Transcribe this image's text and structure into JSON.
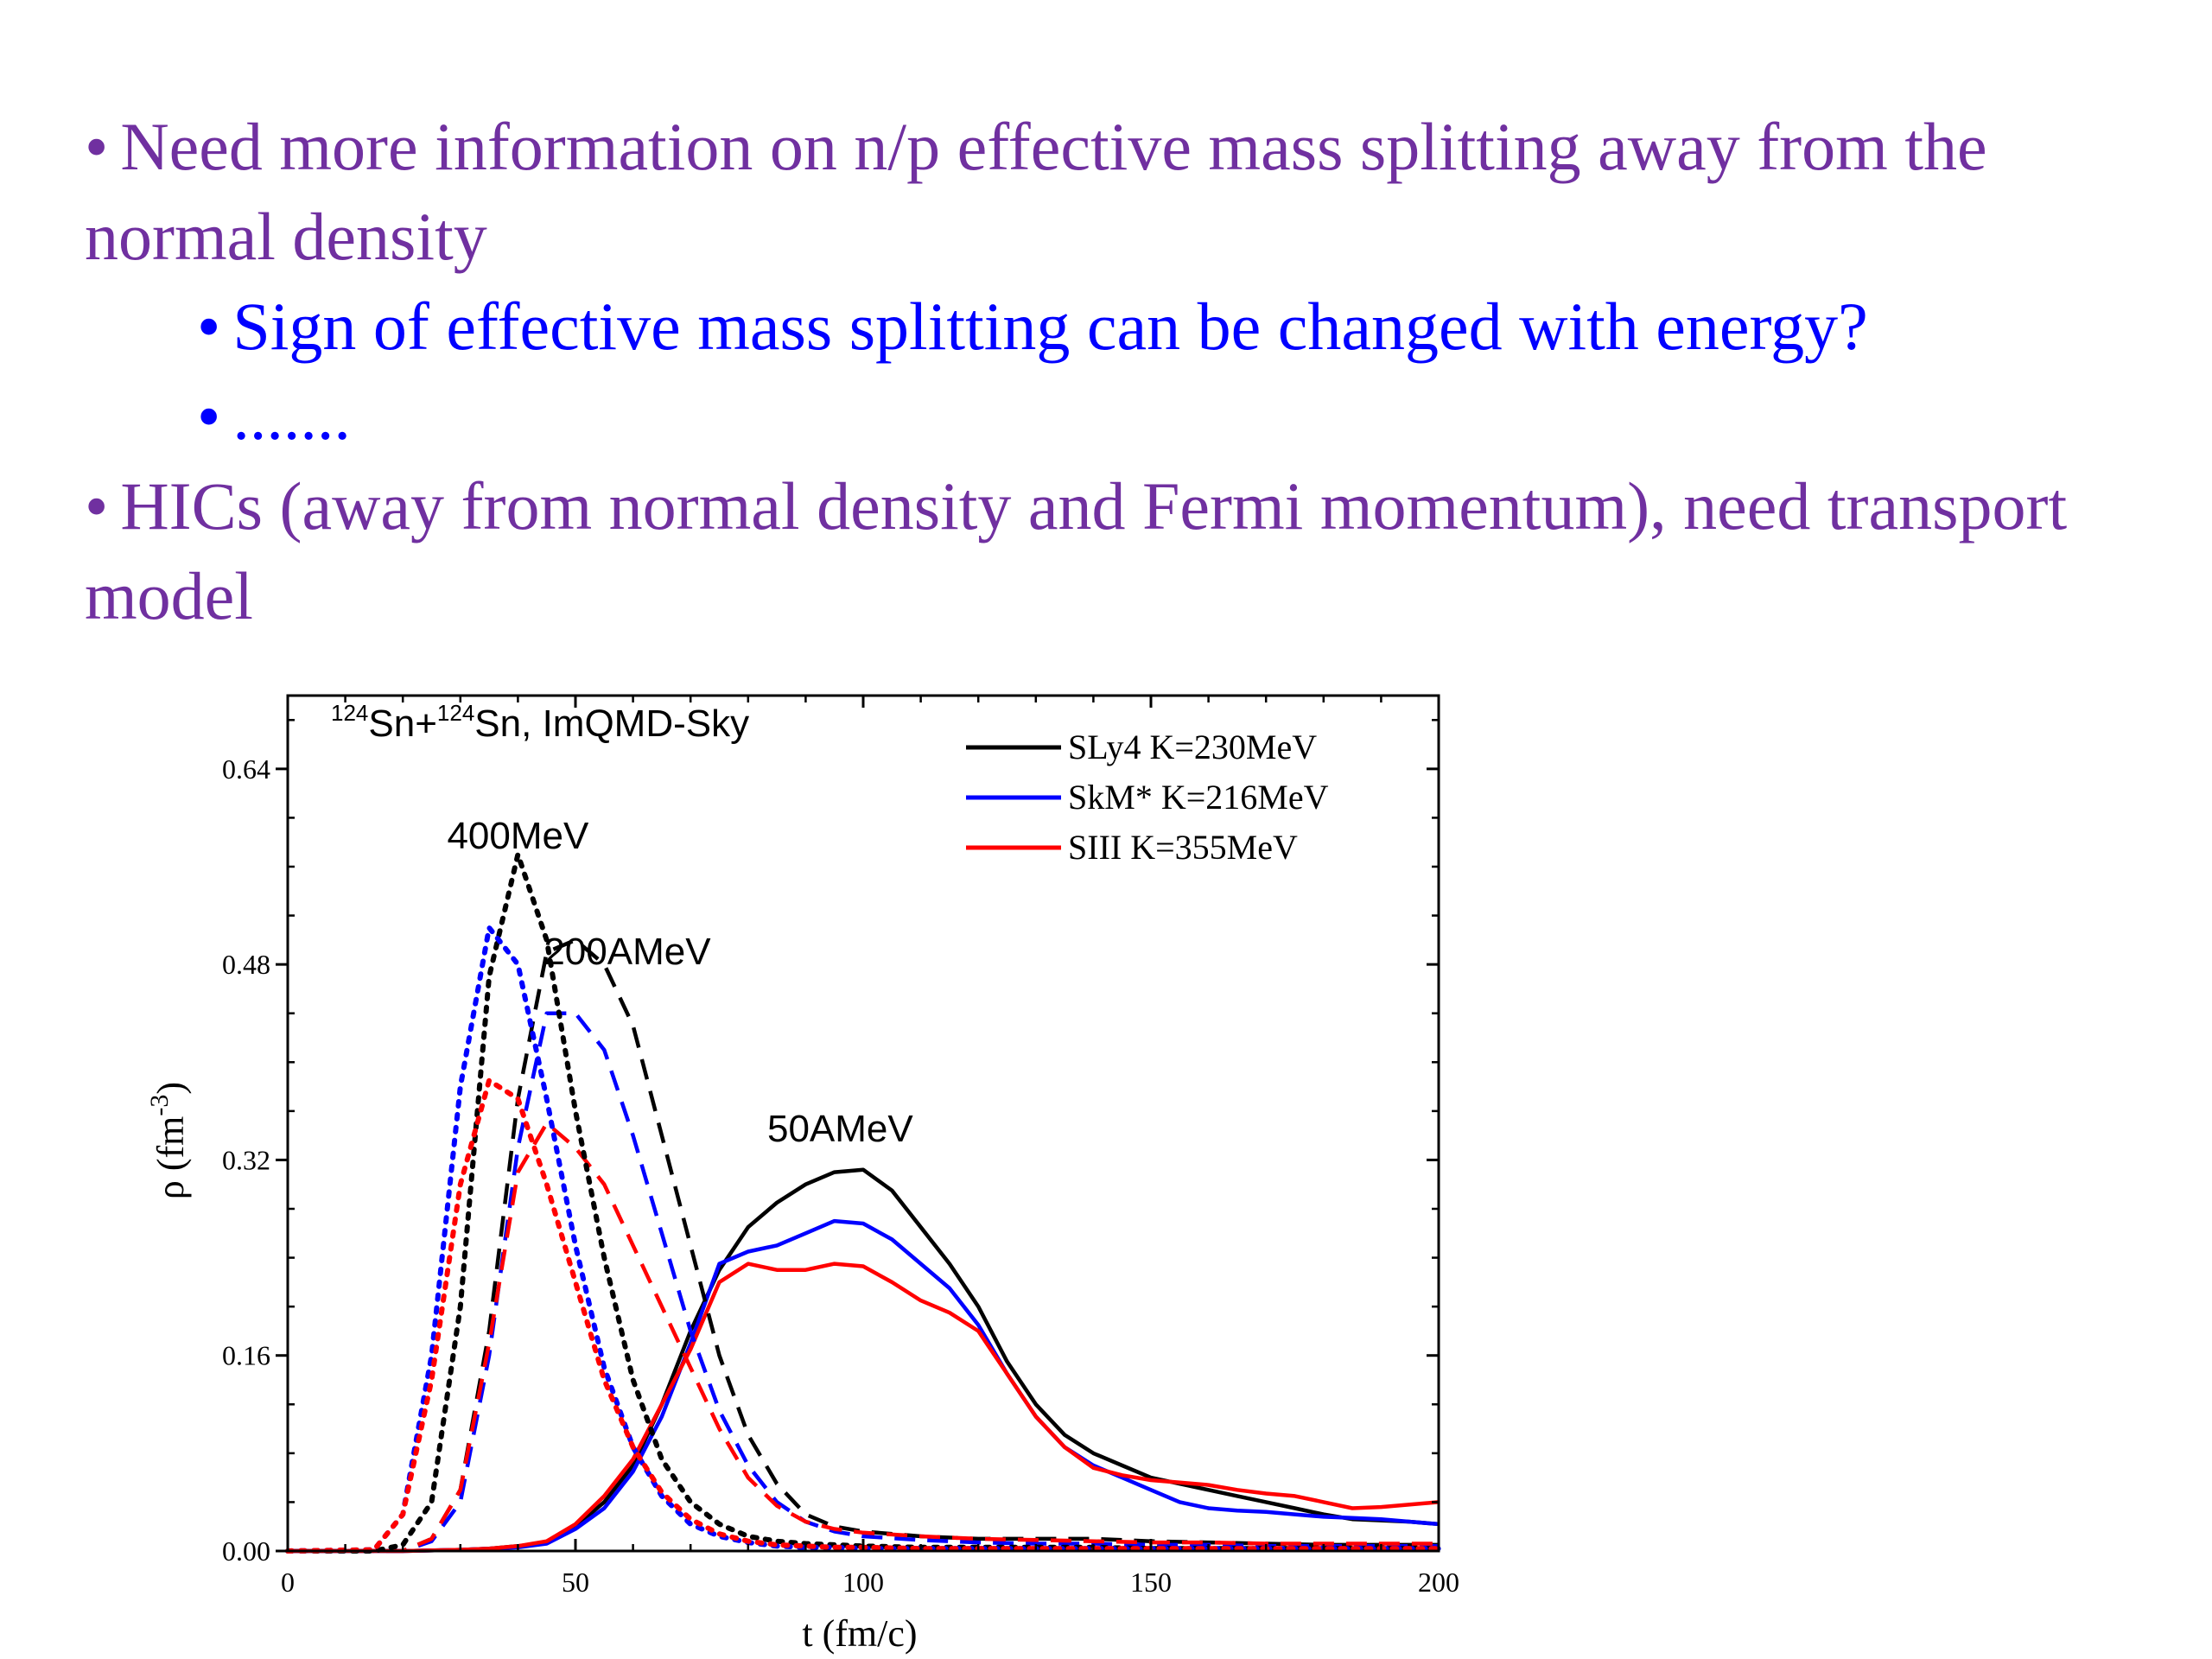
{
  "slide": {
    "bullets": [
      {
        "level": 1,
        "text": "Need more information on n/p effective mass splitting  away from the normal density"
      },
      {
        "level": 2,
        "text": "Sign of effective mass splitting can be changed with energy?"
      },
      {
        "level": 2,
        "text": "......."
      },
      {
        "level": 1,
        "text": "HICs (away from normal density and Fermi momentum), need transport model"
      }
    ],
    "bullet_char": "•"
  },
  "chart_data": {
    "type": "line",
    "title": "Sn+Sn, ImQMD-Sky",
    "title_parts": {
      "sup1": "124",
      "t1": "Sn+",
      "sup2": "124",
      "t2": "Sn, ImQMD-Sky"
    },
    "xlabel": "t (fm/c)",
    "ylabel_parts": {
      "main": "ρ (fm",
      "sup": "-3",
      "end": ")"
    },
    "xlim": [
      0,
      200
    ],
    "ylim": [
      0,
      0.7
    ],
    "xticks": [
      "0",
      "50",
      "100",
      "150",
      "200"
    ],
    "yticks": [
      "0.00",
      "0.16",
      "0.32",
      "0.48",
      "0.64"
    ],
    "ytick_values": [
      0,
      0.16,
      0.32,
      0.48,
      0.64
    ],
    "annotations": [
      {
        "text": "400MeV",
        "x": 40,
        "y": 0.575
      },
      {
        "text": "200AMeV",
        "x": 59,
        "y": 0.48
      },
      {
        "text": "50AMeV",
        "x": 96,
        "y": 0.335
      }
    ],
    "legend": {
      "placement": "top-right",
      "entries": [
        {
          "name": "SLy4 K=230MeV",
          "color": "#000000"
        },
        {
          "name": "SkM* K=216MeV",
          "color": "#0000ff"
        },
        {
          "name": "SIII K=355MeV",
          "color": "#ff0000"
        }
      ]
    },
    "series": [
      {
        "name": "SLy4 K=230MeV",
        "energy": "50AMeV",
        "color": "#000000",
        "style": "solid",
        "x": [
          0,
          20,
          30,
          35,
          40,
          45,
          50,
          55,
          60,
          65,
          70,
          75,
          80,
          85,
          90,
          95,
          100,
          105,
          110,
          115,
          120,
          125,
          130,
          135,
          140,
          145,
          150,
          155,
          160,
          165,
          170,
          175,
          180,
          185,
          190,
          195,
          200
        ],
        "y": [
          0,
          0,
          0.001,
          0.002,
          0.004,
          0.007,
          0.02,
          0.04,
          0.07,
          0.12,
          0.18,
          0.23,
          0.265,
          0.285,
          0.3,
          0.31,
          0.312,
          0.295,
          0.265,
          0.235,
          0.2,
          0.155,
          0.12,
          0.095,
          0.08,
          0.07,
          0.06,
          0.055,
          0.05,
          0.045,
          0.04,
          0.035,
          0.03,
          0.026,
          0.025,
          0.024,
          0.022
        ]
      },
      {
        "name": "SkM* K=216MeV",
        "energy": "50AMeV",
        "color": "#0000ff",
        "style": "solid",
        "x": [
          0,
          20,
          30,
          35,
          40,
          45,
          50,
          55,
          60,
          65,
          70,
          75,
          80,
          85,
          90,
          95,
          100,
          105,
          110,
          115,
          120,
          125,
          130,
          135,
          140,
          145,
          150,
          155,
          160,
          165,
          170,
          175,
          180,
          185,
          190,
          195,
          200
        ],
        "y": [
          0,
          0,
          0.001,
          0.002,
          0.003,
          0.006,
          0.018,
          0.035,
          0.065,
          0.11,
          0.17,
          0.235,
          0.245,
          0.25,
          0.26,
          0.27,
          0.268,
          0.255,
          0.235,
          0.215,
          0.185,
          0.145,
          0.11,
          0.085,
          0.07,
          0.06,
          0.05,
          0.04,
          0.035,
          0.033,
          0.032,
          0.03,
          0.028,
          0.027,
          0.026,
          0.024,
          0.022
        ]
      },
      {
        "name": "SIII K=355MeV",
        "energy": "50AMeV",
        "color": "#ff0000",
        "style": "solid",
        "x": [
          0,
          20,
          30,
          35,
          40,
          45,
          50,
          55,
          60,
          65,
          70,
          75,
          80,
          85,
          90,
          95,
          100,
          105,
          110,
          115,
          120,
          125,
          130,
          135,
          140,
          145,
          150,
          155,
          160,
          165,
          170,
          175,
          180,
          185,
          190,
          195,
          200
        ],
        "y": [
          0,
          0,
          0.001,
          0.002,
          0.004,
          0.008,
          0.022,
          0.045,
          0.075,
          0.12,
          0.165,
          0.22,
          0.235,
          0.23,
          0.23,
          0.235,
          0.233,
          0.22,
          0.205,
          0.195,
          0.18,
          0.145,
          0.11,
          0.085,
          0.068,
          0.062,
          0.058,
          0.056,
          0.054,
          0.05,
          0.047,
          0.045,
          0.04,
          0.035,
          0.036,
          0.038,
          0.04
        ]
      },
      {
        "name": "SLy4 K=230MeV",
        "energy": "200AMeV",
        "color": "#000000",
        "style": "dashed",
        "x": [
          0,
          20,
          25,
          30,
          35,
          40,
          45,
          50,
          55,
          60,
          65,
          70,
          75,
          80,
          85,
          90,
          95,
          100,
          110,
          120,
          130,
          140,
          150,
          160,
          170,
          180,
          190,
          200
        ],
        "y": [
          0,
          0,
          0.01,
          0.05,
          0.18,
          0.37,
          0.49,
          0.5,
          0.48,
          0.43,
          0.34,
          0.25,
          0.16,
          0.095,
          0.055,
          0.03,
          0.02,
          0.016,
          0.012,
          0.01,
          0.01,
          0.01,
          0.008,
          0.007,
          0.006,
          0.005,
          0.005,
          0.005
        ]
      },
      {
        "name": "SkM* K=216MeV",
        "energy": "200AMeV",
        "color": "#0000ff",
        "style": "dashed",
        "x": [
          0,
          20,
          25,
          30,
          35,
          40,
          45,
          50,
          55,
          60,
          65,
          70,
          75,
          80,
          85,
          90,
          95,
          100,
          110,
          120,
          130,
          140,
          150,
          160,
          170,
          180,
          190,
          200
        ],
        "y": [
          0,
          0,
          0.008,
          0.04,
          0.16,
          0.33,
          0.44,
          0.44,
          0.41,
          0.34,
          0.26,
          0.18,
          0.115,
          0.07,
          0.04,
          0.024,
          0.016,
          0.012,
          0.009,
          0.007,
          0.006,
          0.006,
          0.005,
          0.005,
          0.004,
          0.004,
          0.004,
          0.004
        ]
      },
      {
        "name": "SIII K=355MeV",
        "energy": "200AMeV",
        "color": "#ff0000",
        "style": "dashed",
        "x": [
          0,
          20,
          25,
          30,
          35,
          40,
          45,
          50,
          55,
          60,
          65,
          70,
          75,
          80,
          85,
          90,
          95,
          100,
          110,
          120,
          130,
          140,
          150,
          160,
          170,
          180,
          190,
          200
        ],
        "y": [
          0,
          0,
          0.01,
          0.05,
          0.17,
          0.31,
          0.35,
          0.33,
          0.3,
          0.25,
          0.2,
          0.15,
          0.1,
          0.06,
          0.037,
          0.024,
          0.018,
          0.015,
          0.012,
          0.01,
          0.009,
          0.008,
          0.007,
          0.007,
          0.006,
          0.006,
          0.006,
          0.006
        ]
      },
      {
        "name": "SLy4 K=230MeV",
        "energy": "400MeV",
        "color": "#000000",
        "style": "dotted",
        "x": [
          0,
          15,
          20,
          25,
          30,
          35,
          40,
          45,
          50,
          55,
          60,
          65,
          70,
          75,
          80,
          85,
          90,
          95,
          100,
          110,
          120,
          130,
          140,
          150,
          160,
          170,
          180,
          190,
          200
        ],
        "y": [
          0,
          0,
          0.005,
          0.04,
          0.2,
          0.47,
          0.57,
          0.5,
          0.36,
          0.24,
          0.14,
          0.075,
          0.04,
          0.022,
          0.012,
          0.008,
          0.006,
          0.005,
          0.004,
          0.003,
          0.003,
          0.003,
          0.003,
          0.002,
          0.002,
          0.002,
          0.002,
          0.002,
          0.002
        ]
      },
      {
        "name": "SkM* K=216MeV",
        "energy": "400MeV",
        "color": "#0000ff",
        "style": "dotted",
        "x": [
          0,
          15,
          20,
          25,
          30,
          35,
          40,
          45,
          50,
          55,
          60,
          65,
          70,
          75,
          80,
          85,
          90,
          95,
          100,
          110,
          120,
          130,
          140,
          150,
          160,
          170,
          180,
          190,
          200
        ],
        "y": [
          0,
          0.001,
          0.03,
          0.16,
          0.38,
          0.51,
          0.48,
          0.37,
          0.25,
          0.15,
          0.085,
          0.045,
          0.022,
          0.012,
          0.007,
          0.004,
          0.003,
          0.003,
          0.002,
          0.002,
          0.002,
          0.002,
          0.002,
          0.002,
          0.002,
          0.002,
          0.002,
          0.002,
          0.002
        ]
      },
      {
        "name": "SIII K=355MeV",
        "energy": "400MeV",
        "color": "#ff0000",
        "style": "dotted",
        "x": [
          0,
          15,
          20,
          25,
          30,
          35,
          40,
          45,
          50,
          55,
          60,
          65,
          70,
          75,
          80,
          85,
          90,
          95,
          100,
          110,
          120,
          130,
          140,
          150,
          160,
          170,
          180,
          190,
          200
        ],
        "y": [
          0,
          0.001,
          0.03,
          0.14,
          0.3,
          0.385,
          0.37,
          0.3,
          0.22,
          0.14,
          0.085,
          0.048,
          0.026,
          0.014,
          0.008,
          0.005,
          0.004,
          0.003,
          0.003,
          0.002,
          0.002,
          0.002,
          0.002,
          0.002,
          0.002,
          0.002,
          0.002,
          0.002,
          0.002
        ]
      }
    ]
  }
}
